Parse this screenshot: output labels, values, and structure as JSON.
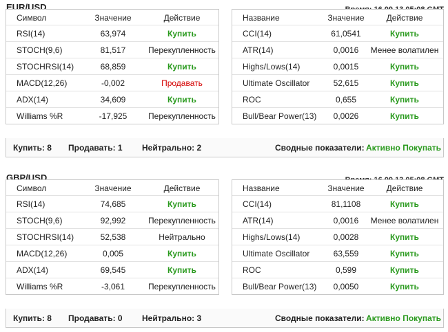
{
  "panels": [
    {
      "pair": "EUR/USD",
      "time": "Время: 16.09.13 05:08 GMT",
      "left": {
        "headers": [
          "Символ",
          "Значение",
          "Действие"
        ],
        "rows": [
          {
            "name": "RSI(14)",
            "value": "63,974",
            "action": "Купить",
            "type": "buy"
          },
          {
            "name": "STOCH(9,6)",
            "value": "81,517",
            "action": "Перекупленность",
            "type": "neutral"
          },
          {
            "name": "STOCHRSI(14)",
            "value": "68,859",
            "action": "Купить",
            "type": "buy"
          },
          {
            "name": "MACD(12,26)",
            "value": "-0,002",
            "action": "Продавать",
            "type": "sell"
          },
          {
            "name": "ADX(14)",
            "value": "34,609",
            "action": "Купить",
            "type": "buy"
          },
          {
            "name": "Williams %R",
            "value": "-17,925",
            "action": "Перекупленность",
            "type": "neutral"
          }
        ]
      },
      "right": {
        "headers": [
          "Название",
          "Значение",
          "Действие"
        ],
        "rows": [
          {
            "name": "CCI(14)",
            "value": "61,0541",
            "action": "Купить",
            "type": "buy"
          },
          {
            "name": "ATR(14)",
            "value": "0,0016",
            "action": "Менее волатилен",
            "type": "neutral"
          },
          {
            "name": "Highs/Lows(14)",
            "value": "0,0015",
            "action": "Купить",
            "type": "buy"
          },
          {
            "name": "Ultimate Oscillator",
            "value": "52,615",
            "action": "Купить",
            "type": "buy"
          },
          {
            "name": "ROC",
            "value": "0,655",
            "action": "Купить",
            "type": "buy"
          },
          {
            "name": "Bull/Bear Power(13)",
            "value": "0,0026",
            "action": "Купить",
            "type": "buy"
          }
        ]
      },
      "summary": {
        "buy": "Купить: 8",
        "sell": "Продавать: 1",
        "neutral": "Нейтрально: 2",
        "label": "Сводные показатели:",
        "result": "Активно Покупать"
      }
    },
    {
      "pair": "GBP/USD",
      "time": "Время: 16.09.13 05:08 GMT",
      "left": {
        "headers": [
          "Символ",
          "Значение",
          "Действие"
        ],
        "rows": [
          {
            "name": "RSI(14)",
            "value": "74,685",
            "action": "Купить",
            "type": "buy"
          },
          {
            "name": "STOCH(9,6)",
            "value": "92,992",
            "action": "Перекупленность",
            "type": "neutral"
          },
          {
            "name": "STOCHRSI(14)",
            "value": "52,538",
            "action": "Нейтрально",
            "type": "neutral"
          },
          {
            "name": "MACD(12,26)",
            "value": "0,005",
            "action": "Купить",
            "type": "buy"
          },
          {
            "name": "ADX(14)",
            "value": "69,545",
            "action": "Купить",
            "type": "buy"
          },
          {
            "name": "Williams %R",
            "value": "-3,061",
            "action": "Перекупленность",
            "type": "neutral"
          }
        ]
      },
      "right": {
        "headers": [
          "Название",
          "Значение",
          "Действие"
        ],
        "rows": [
          {
            "name": "CCI(14)",
            "value": "81,1108",
            "action": "Купить",
            "type": "buy"
          },
          {
            "name": "ATR(14)",
            "value": "0,0016",
            "action": "Менее волатилен",
            "type": "neutral"
          },
          {
            "name": "Highs/Lows(14)",
            "value": "0,0028",
            "action": "Купить",
            "type": "buy"
          },
          {
            "name": "Ultimate Oscillator",
            "value": "63,559",
            "action": "Купить",
            "type": "buy"
          },
          {
            "name": "ROC",
            "value": "0,599",
            "action": "Купить",
            "type": "buy"
          },
          {
            "name": "Bull/Bear Power(13)",
            "value": "0,0050",
            "action": "Купить",
            "type": "buy"
          }
        ]
      },
      "summary": {
        "buy": "Купить: 8",
        "sell": "Продавать: 0",
        "neutral": "Нейтрально: 3",
        "label": "Сводные показатели:",
        "result": "Активно Покупать"
      }
    }
  ]
}
